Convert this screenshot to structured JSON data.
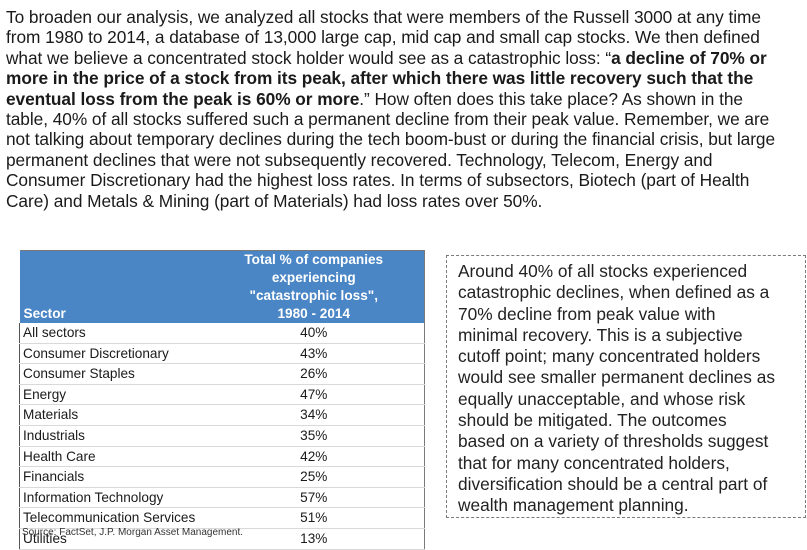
{
  "paragraph": {
    "lines": [
      {
        "text": "To broaden our analysis, we analyzed all stocks that were members of the Russell 3000 at any time"
      },
      {
        "text": "from 1980 to 2014, a database of 13,000 large cap, mid cap and small cap stocks.  We then defined"
      },
      {
        "pre": "what we believe a concentrated stock holder would see as a catastrophic loss: “",
        "bold": "a decline of 70% or"
      },
      {
        "bold": "more in the price of a stock from its peak, after which there was little recovery such that the"
      },
      {
        "bold": "eventual loss from the peak is 60% or more",
        "post": ".”  How often does this take place?  As shown in the"
      },
      {
        "text": "table, 40% of all stocks suffered such a permanent decline from their peak value.  Remember, we are"
      },
      {
        "text": "not talking about temporary declines during the tech boom-bust or during the financial crisis, but large"
      },
      {
        "text": "permanent declines that were not subsequently recovered.  Technology, Telecom, Energy and"
      },
      {
        "text": "Consumer Discretionary had the highest loss rates.  In terms of subsectors, Biotech (part of Health"
      },
      {
        "text": "Care) and Metals & Mining (part of Materials) had loss rates over 50%."
      }
    ]
  },
  "table": {
    "header_sector": "Sector",
    "header_total": [
      "Total % of companies experiencing",
      "\"catastrophic loss\",",
      "1980 - 2014"
    ],
    "rows": [
      {
        "sector": "All sectors",
        "value": "40%"
      },
      {
        "sector": "Consumer Discretionary",
        "value": "43%"
      },
      {
        "sector": "Consumer Staples",
        "value": "26%"
      },
      {
        "sector": "Energy",
        "value": "47%"
      },
      {
        "sector": "Materials",
        "value": "34%"
      },
      {
        "sector": "Industrials",
        "value": "35%"
      },
      {
        "sector": "Health Care",
        "value": "42%"
      },
      {
        "sector": "Financials",
        "value": "25%"
      },
      {
        "sector": "Information Technology",
        "value": "57%"
      },
      {
        "sector": "Telecommunication Services",
        "value": "51%"
      },
      {
        "sector": "Utilities",
        "value": "13%"
      }
    ],
    "source": "Source: FactSet, J.P. Morgan Asset Management."
  },
  "callout": {
    "lines": [
      "Around 40% of all stocks experienced",
      "catastrophic declines, when defined as a",
      "70% decline from peak value with",
      "minimal recovery.  This is a subjective",
      "cutoff point; many concentrated holders",
      "would see smaller permanent declines as",
      "equally unacceptable, and whose risk",
      "should be mitigated.  The outcomes",
      "based on a variety of thresholds suggest",
      "that for many concentrated holders,",
      "diversification should be a central part of",
      "wealth management planning."
    ]
  }
}
